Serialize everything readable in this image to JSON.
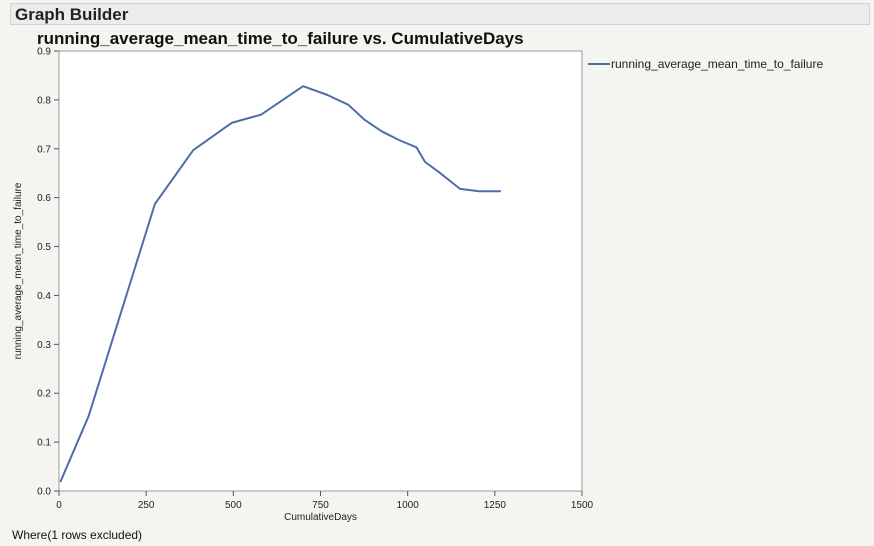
{
  "header": {
    "title": "Graph Builder"
  },
  "footer": {
    "text": "Where(1 rows excluded)"
  },
  "chart_data": {
    "type": "line",
    "title": "running_average_mean_time_to_failure vs. CumulativeDays",
    "xlabel": "CumulativeDays",
    "ylabel": "running_average_mean_time_to_failure",
    "xlim": [
      0,
      1500
    ],
    "ylim": [
      0,
      0.9
    ],
    "xticks": [
      0,
      250,
      500,
      750,
      1000,
      1250,
      1500
    ],
    "yticks": [
      0.0,
      0.1,
      0.2,
      0.3,
      0.4,
      0.5,
      0.6,
      0.7,
      0.8,
      0.9
    ],
    "ytick_labels": [
      "0.0",
      "0.1",
      "0.2",
      "0.3",
      "0.4",
      "0.5",
      "0.6",
      "0.7",
      "0.8",
      "0.9"
    ],
    "grid": false,
    "legend_position": "top-right",
    "series": [
      {
        "name": "running_average_mean_time_to_failure",
        "color": "#4f6ea8",
        "x": [
          5,
          85,
          275,
          385,
          495,
          580,
          700,
          770,
          830,
          875,
          925,
          975,
          1025,
          1050,
          1090,
          1150,
          1205,
          1265
        ],
        "y": [
          0.02,
          0.153,
          0.587,
          0.697,
          0.753,
          0.77,
          0.828,
          0.81,
          0.79,
          0.76,
          0.736,
          0.718,
          0.703,
          0.673,
          0.652,
          0.618,
          0.613,
          0.613
        ]
      }
    ]
  }
}
